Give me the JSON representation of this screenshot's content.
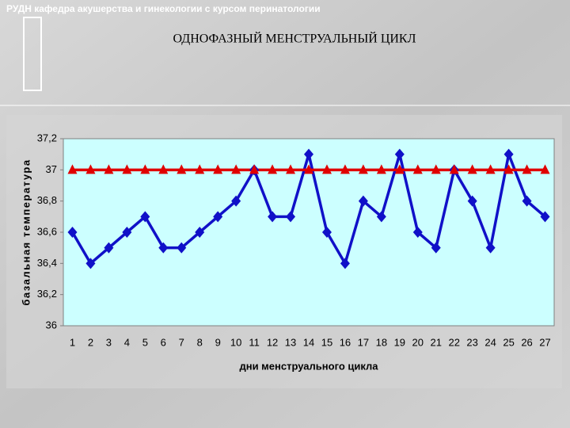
{
  "header": "РУДН кафедра акушерства и гинекологии с курсом перинатологии",
  "chart_data": {
    "type": "line",
    "title": "ОДНОФАЗНЫЙ МЕНСТРУАЛЬНЫЙ ЦИКЛ",
    "x_label": "дни менструального цикла",
    "y_label": "базальная температура",
    "categories": [
      1,
      2,
      3,
      4,
      5,
      6,
      7,
      8,
      9,
      10,
      11,
      12,
      13,
      14,
      15,
      16,
      17,
      18,
      19,
      20,
      21,
      22,
      23,
      24,
      25,
      26,
      27
    ],
    "series": [
      {
        "color": "#1010c8",
        "marker": "diamond",
        "values": [
          36.6,
          36.4,
          36.5,
          36.6,
          36.7,
          36.5,
          36.5,
          36.6,
          36.7,
          36.8,
          37,
          36.7,
          36.7,
          37.1,
          36.6,
          36.4,
          36.8,
          36.7,
          37.1,
          36.6,
          36.5,
          37,
          36.8,
          36.5,
          37.1,
          36.8,
          36.7
        ]
      },
      {
        "color": "#e00000",
        "marker": "triangle",
        "values": [
          37,
          37,
          37,
          37,
          37,
          37,
          37,
          37,
          37,
          37,
          37,
          37,
          37,
          37,
          37,
          37,
          37,
          37,
          37,
          37,
          37,
          37,
          37,
          37,
          37,
          37,
          37
        ]
      }
    ],
    "ylim": [
      36,
      37.2
    ],
    "yticks": [
      36,
      {
        "value": 36.2,
        "label": "36,2"
      },
      {
        "value": 36.4,
        "label": "36,4"
      },
      {
        "value": 36.6,
        "label": "36,6"
      },
      {
        "value": 36.8,
        "label": "36,8"
      },
      37,
      {
        "value": 37.2,
        "label": "37,2"
      }
    ],
    "grid": false
  }
}
